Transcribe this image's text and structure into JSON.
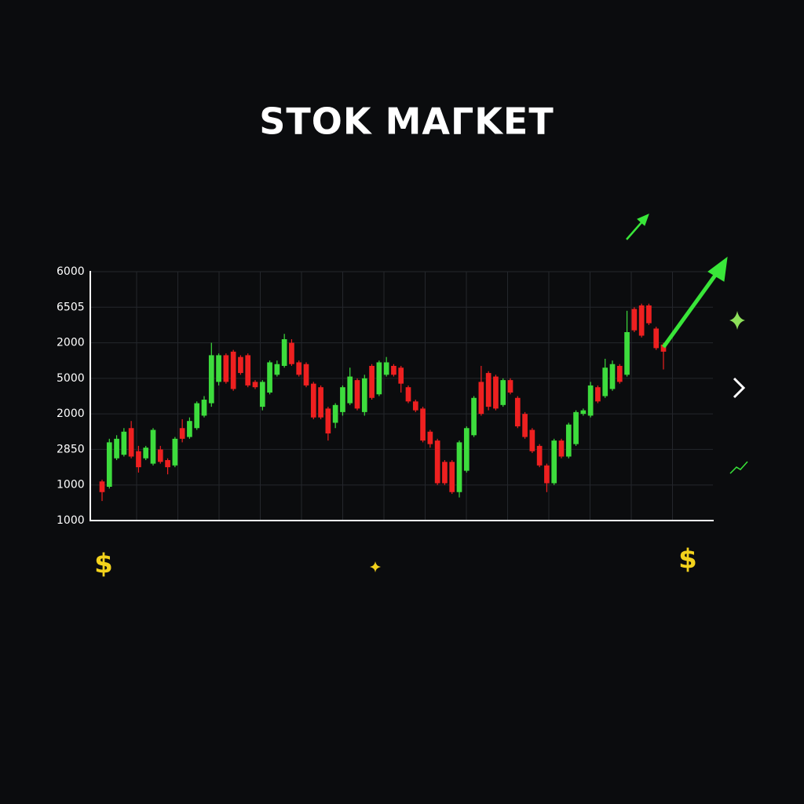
{
  "chart_data": {
    "type": "candlestick",
    "title": "STOK MAГKET",
    "ylim": [
      0,
      7
    ],
    "yticks": [
      {
        "value": 0,
        "label": "1000"
      },
      {
        "value": 1,
        "label": "1000"
      },
      {
        "value": 2,
        "label": "2850"
      },
      {
        "value": 3,
        "label": "2000"
      },
      {
        "value": 4,
        "label": "5000"
      },
      {
        "value": 5,
        "label": "2000"
      },
      {
        "value": 6,
        "label": "6505"
      },
      {
        "value": 7,
        "label": "6000"
      }
    ],
    "grid": true,
    "up_color": "#3ddc3d",
    "down_color": "#ee2020",
    "annotations": [
      "$",
      "$"
    ],
    "open": [
      1.1,
      0.95,
      1.75,
      1.85,
      2.6,
      1.95,
      1.75,
      1.6,
      2.0,
      1.7,
      1.55,
      2.6,
      2.35,
      2.6,
      2.95,
      3.3,
      3.9,
      4.65,
      4.75,
      4.6,
      4.65,
      3.9,
      3.2,
      3.6,
      4.1,
      4.35,
      5.0,
      4.45,
      4.4,
      3.85,
      3.75,
      3.15,
      2.75,
      3.05,
      3.3,
      3.95,
      3.05,
      4.35,
      3.55,
      4.1,
      4.35,
      4.3,
      3.75,
      3.35,
      3.15,
      2.5,
      2.25,
      1.65,
      1.65,
      0.8,
      1.4,
      2.4,
      3.9,
      4.15,
      4.05,
      3.25,
      3.95,
      3.45,
      3.0,
      2.55,
      2.1,
      1.55,
      1.05,
      2.25,
      1.8,
      2.15,
      3.0,
      2.95,
      3.75,
      3.5,
      3.7,
      4.35,
      4.1,
      5.95,
      6.05,
      6.05,
      5.4,
      4.95
    ],
    "high": [
      1.15,
      2.3,
      2.4,
      2.6,
      2.8,
      2.1,
      2.1,
      2.6,
      2.1,
      1.75,
      2.35,
      2.85,
      2.9,
      3.35,
      3.5,
      5.0,
      4.7,
      4.7,
      4.8,
      4.65,
      4.7,
      3.95,
      3.95,
      4.5,
      4.5,
      5.25,
      5.1,
      4.5,
      4.45,
      3.9,
      3.8,
      3.2,
      3.3,
      3.8,
      4.3,
      4.0,
      4.1,
      4.4,
      4.5,
      4.6,
      4.4,
      4.35,
      3.8,
      3.4,
      3.2,
      2.55,
      2.3,
      1.7,
      1.7,
      2.25,
      2.65,
      3.5,
      4.35,
      4.2,
      4.1,
      4.0,
      4.0,
      3.5,
      3.05,
      2.6,
      2.15,
      1.6,
      2.3,
      2.3,
      2.75,
      3.1,
      3.15,
      3.9,
      3.8,
      4.55,
      4.5,
      4.4,
      5.9,
      6.0,
      6.1,
      6.1,
      5.45,
      5.0
    ],
    "low": [
      0.55,
      0.9,
      1.7,
      1.8,
      1.75,
      1.35,
      1.7,
      1.55,
      1.6,
      1.3,
      1.5,
      2.2,
      2.3,
      2.55,
      2.9,
      3.2,
      3.8,
      3.85,
      3.65,
      4.1,
      3.75,
      3.7,
      3.1,
      3.55,
      4.05,
      4.3,
      4.35,
      4.05,
      3.75,
      2.85,
      2.85,
      2.25,
      2.6,
      2.95,
      3.25,
      3.1,
      2.95,
      3.4,
      3.5,
      4.05,
      4.05,
      3.6,
      3.3,
      3.05,
      2.2,
      2.05,
      1.0,
      1.0,
      0.75,
      0.65,
      1.35,
      2.35,
      2.95,
      3.1,
      3.1,
      3.2,
      3.55,
      2.6,
      2.3,
      1.9,
      1.5,
      0.8,
      1.0,
      1.75,
      1.75,
      2.1,
      2.95,
      2.9,
      3.3,
      3.45,
      3.65,
      3.85,
      4.05,
      5.3,
      5.15,
      5.5,
      4.8,
      4.25
    ],
    "close": [
      0.8,
      2.2,
      2.3,
      2.5,
      1.8,
      1.5,
      2.05,
      2.55,
      1.65,
      1.5,
      2.3,
      2.3,
      2.8,
      3.3,
      3.4,
      4.65,
      4.65,
      3.9,
      3.7,
      4.15,
      3.8,
      3.75,
      3.9,
      4.45,
      4.4,
      5.1,
      4.4,
      4.1,
      3.8,
      2.9,
      2.9,
      2.45,
      3.25,
      3.75,
      4.05,
      3.15,
      4.0,
      3.45,
      4.45,
      4.45,
      4.1,
      3.85,
      3.35,
      3.1,
      2.25,
      2.15,
      1.05,
      1.05,
      0.8,
      2.2,
      2.6,
      3.45,
      3.0,
      3.2,
      3.15,
      3.95,
      3.6,
      2.65,
      2.35,
      1.95,
      1.55,
      1.05,
      2.25,
      1.8,
      2.7,
      3.05,
      3.1,
      3.8,
      3.35,
      4.3,
      4.4,
      3.9,
      5.3,
      5.35,
      5.2,
      5.55,
      4.85,
      4.75
    ]
  }
}
